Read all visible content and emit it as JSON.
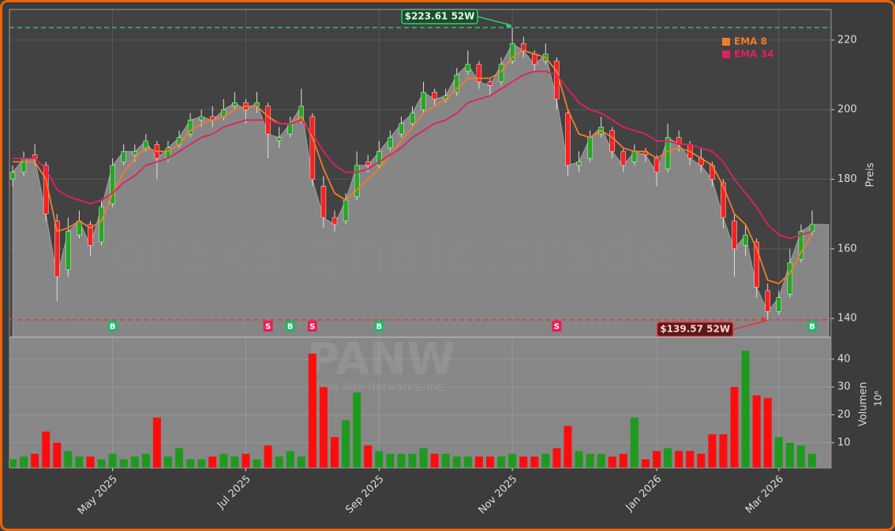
{
  "chart_data": {
    "type": "candlestick",
    "watermark": "forexsignale.trade",
    "symbol": "PANW",
    "company": "Palo Alto Networks, Inc.",
    "y_label": "Preis",
    "ylim": [
      134.6,
      228.8
    ],
    "yticks": [
      140,
      160,
      180,
      200,
      220
    ],
    "grid": true,
    "legend": "upper right",
    "up_color": "#24a824",
    "down_color": "#ff1f1f",
    "area_color": "#8a8a8a",
    "categories": [
      null,
      null,
      null,
      null,
      null,
      null,
      null,
      null,
      null,
      "May 2025",
      null,
      null,
      null,
      null,
      null,
      null,
      null,
      null,
      null,
      null,
      null,
      "Jul 2025",
      null,
      null,
      null,
      null,
      null,
      null,
      null,
      null,
      null,
      null,
      null,
      "Sep 2025",
      null,
      null,
      null,
      null,
      null,
      null,
      null,
      null,
      null,
      null,
      null,
      "Nov 2025",
      null,
      null,
      null,
      null,
      null,
      null,
      null,
      null,
      null,
      null,
      null,
      null,
      "Jan 2026",
      null,
      null,
      null,
      null,
      null,
      null,
      null,
      null,
      null,
      null,
      "Mar 2026",
      null,
      null,
      null
    ],
    "open": [
      180,
      182,
      187,
      184,
      168,
      154,
      164,
      167,
      162,
      173,
      185,
      187,
      189,
      190,
      186,
      190,
      193,
      197,
      198,
      198,
      201,
      202,
      201,
      201,
      191,
      193,
      197,
      198,
      178,
      169,
      168,
      175,
      185,
      184,
      189,
      193,
      196,
      200,
      205,
      203,
      205,
      211,
      213,
      208,
      208,
      214,
      219,
      216,
      214,
      214,
      199,
      184,
      186,
      193,
      194,
      188,
      185,
      188,
      186,
      183,
      192,
      190,
      186,
      184,
      179,
      168,
      161,
      162,
      148,
      142,
      147,
      157,
      165
    ],
    "high": [
      184,
      188,
      190,
      185,
      170,
      169,
      171,
      168,
      174,
      186,
      190,
      190,
      193,
      191,
      191,
      194,
      199,
      200,
      201,
      203,
      205,
      203,
      205,
      202,
      195,
      198,
      206,
      199,
      181,
      171,
      176,
      188,
      187,
      191,
      194,
      198,
      201,
      208,
      206,
      206,
      212,
      217,
      214,
      209,
      215,
      223.61,
      221,
      217,
      219,
      215,
      200,
      188,
      194,
      198,
      195,
      189,
      190,
      189,
      187,
      196,
      194,
      191,
      189,
      185,
      180,
      170,
      167,
      163,
      150,
      148,
      160,
      167,
      171
    ],
    "low": [
      178,
      181,
      184,
      168,
      145,
      152,
      163,
      158,
      161,
      172,
      184,
      185,
      188,
      180,
      185,
      189,
      192,
      195,
      195,
      197,
      200,
      196,
      199,
      186,
      189,
      192,
      196,
      178,
      166,
      165,
      167,
      174,
      182,
      183,
      188,
      192,
      195,
      199,
      201,
      202,
      204,
      210,
      206,
      204,
      207,
      213,
      215,
      211,
      213,
      200,
      181,
      182,
      185,
      192,
      186,
      182,
      184,
      185,
      178,
      182,
      188,
      184,
      182,
      178,
      166,
      152,
      158,
      146,
      139.57,
      141,
      146,
      156,
      164
    ],
    "close": [
      182,
      186,
      186,
      170,
      152,
      165,
      168,
      161,
      172,
      184,
      188,
      188,
      191,
      186,
      189,
      192,
      197,
      198,
      197,
      200,
      202,
      200,
      202,
      193,
      192,
      196,
      201,
      180,
      169,
      167,
      174,
      184,
      184,
      188,
      192,
      196,
      199,
      205,
      203,
      204,
      210,
      213,
      208,
      207,
      213,
      219,
      217,
      213,
      216,
      203,
      184,
      185,
      192,
      195,
      188,
      184,
      188,
      187,
      182,
      192,
      190,
      186,
      184,
      180,
      169,
      160,
      164,
      149,
      142,
      146,
      156,
      165,
      167
    ],
    "series": [
      {
        "name": "EMA 8",
        "color": "#f47b2a",
        "values": [
          185,
          185,
          185,
          180,
          165,
          166,
          168,
          166,
          168,
          176,
          182,
          186,
          189,
          188,
          188,
          190,
          194,
          196,
          197,
          198,
          200,
          201,
          201,
          198,
          196,
          196,
          198,
          192,
          183,
          176,
          174,
          177,
          180,
          183,
          187,
          191,
          195,
          199,
          201,
          203,
          206,
          209,
          209,
          209,
          211,
          215,
          217,
          216,
          215,
          211,
          200,
          193,
          192,
          194,
          192,
          189,
          188,
          188,
          186,
          188,
          189,
          188,
          186,
          184,
          178,
          170,
          167,
          160,
          151,
          150,
          153,
          159,
          164
        ]
      },
      {
        "name": "EMA 34",
        "color": "#e0215f",
        "values": [
          186,
          186,
          186,
          183,
          177,
          175,
          174,
          173,
          174,
          176,
          179,
          181,
          184,
          185,
          186,
          188,
          190,
          192,
          193,
          195,
          196,
          197,
          197,
          197,
          196,
          196,
          197,
          193,
          188,
          184,
          182,
          182,
          183,
          185,
          187,
          189,
          192,
          194,
          196,
          197,
          199,
          202,
          203,
          204,
          206,
          208,
          210,
          211,
          211,
          210,
          206,
          202,
          200,
          199,
          197,
          195,
          194,
          193,
          191,
          191,
          190,
          190,
          189,
          188,
          185,
          180,
          176,
          172,
          167,
          164,
          163,
          164,
          165
        ]
      }
    ],
    "signals": [
      null,
      null,
      null,
      null,
      null,
      null,
      null,
      null,
      null,
      "B",
      null,
      null,
      null,
      null,
      null,
      null,
      null,
      null,
      null,
      null,
      null,
      null,
      null,
      "S",
      null,
      "B",
      null,
      "S",
      null,
      null,
      null,
      null,
      null,
      "B",
      null,
      null,
      null,
      null,
      null,
      null,
      null,
      null,
      null,
      null,
      null,
      null,
      null,
      null,
      null,
      "S",
      null,
      null,
      null,
      null,
      null,
      null,
      null,
      null,
      null,
      null,
      null,
      null,
      null,
      null,
      null,
      null,
      null,
      null,
      null,
      null,
      null,
      null,
      "B"
    ],
    "signal_colors": {
      "B": "#1fb86a",
      "S": "#e8205a"
    },
    "annotations": [
      {
        "value": 223.61,
        "label": "$223.61 52W",
        "color": "#2ecc71"
      },
      {
        "value": 139.57,
        "label": "$139.57 52W",
        "color": "#e83030"
      }
    ],
    "volume": {
      "y_label": "Volumen",
      "multiplier": "10⁶",
      "ylim": [
        0.9,
        47.9
      ],
      "yticks": [
        10,
        20,
        30,
        40
      ],
      "values": [
        4,
        5,
        6,
        14,
        10,
        7,
        5,
        5,
        4,
        6,
        4,
        5,
        6,
        19,
        5,
        8,
        4,
        4,
        5,
        6,
        5,
        6,
        4,
        9,
        5,
        7,
        5,
        42,
        30,
        12,
        18,
        28,
        9,
        7,
        6,
        6,
        6,
        8,
        6,
        6,
        5,
        5,
        5,
        5,
        5,
        6,
        5,
        5,
        6,
        8,
        16,
        7,
        6,
        6,
        5,
        6,
        19,
        4,
        7,
        8,
        7,
        7,
        6,
        13,
        13,
        30,
        43,
        27,
        26,
        12,
        10,
        9,
        6
      ]
    }
  }
}
